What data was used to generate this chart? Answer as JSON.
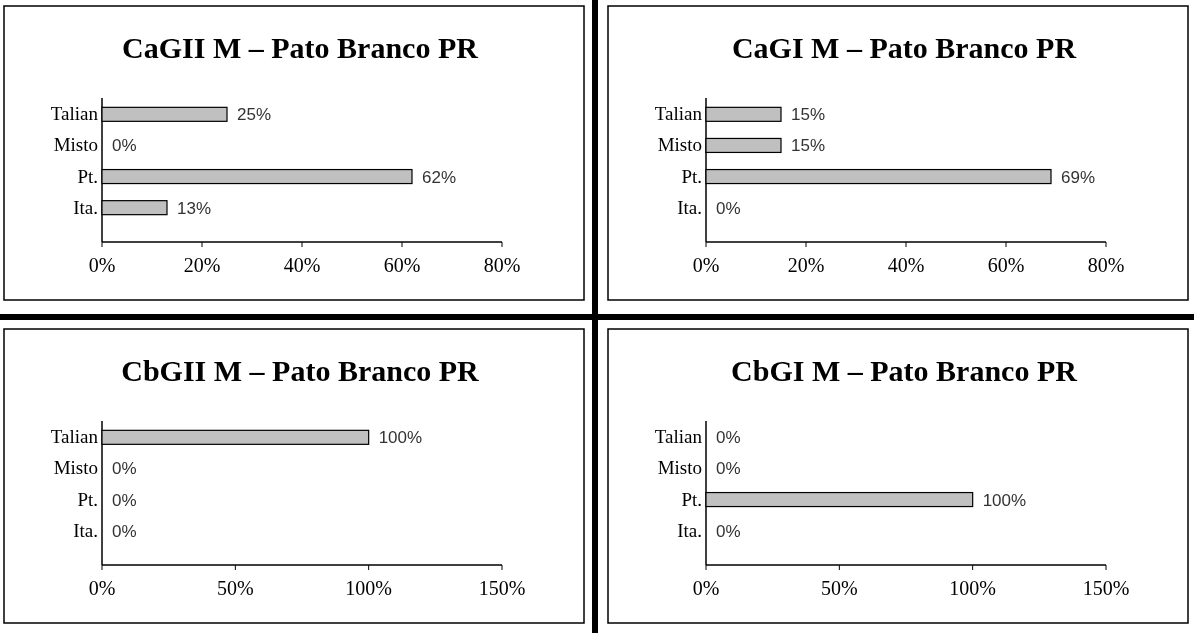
{
  "chart_data": [
    {
      "type": "bar",
      "orientation": "horizontal",
      "title": "CaGII M – Pato Branco PR",
      "categories": [
        "Talian",
        "Misto",
        "Pt.",
        "Ita."
      ],
      "values": [
        25,
        0,
        62,
        13
      ],
      "value_labels": [
        "25%",
        "0%",
        "62%",
        "13%"
      ],
      "color": "#c0c0c0",
      "xlim": [
        0,
        80
      ],
      "xticks": [
        {
          "value": 0,
          "label": "0%"
        },
        {
          "value": 20,
          "label": "20%"
        },
        {
          "value": 40,
          "label": "40%"
        },
        {
          "value": 60,
          "label": "60%"
        },
        {
          "value": 80,
          "label": "80%"
        }
      ]
    },
    {
      "type": "bar",
      "orientation": "horizontal",
      "title": "CaGI M – Pato Branco PR",
      "categories": [
        "Talian",
        "Misto",
        "Pt.",
        "Ita."
      ],
      "values": [
        15,
        15,
        69,
        0
      ],
      "value_labels": [
        "15%",
        "15%",
        "69%",
        "0%"
      ],
      "color": "#c0c0c0",
      "xlim": [
        0,
        80
      ],
      "xticks": [
        {
          "value": 0,
          "label": "0%"
        },
        {
          "value": 20,
          "label": "20%"
        },
        {
          "value": 40,
          "label": "40%"
        },
        {
          "value": 60,
          "label": "60%"
        },
        {
          "value": 80,
          "label": "80%"
        }
      ]
    },
    {
      "type": "bar",
      "orientation": "horizontal",
      "title": "CbGII M – Pato Branco PR",
      "categories": [
        "Talian",
        "Misto",
        "Pt.",
        "Ita."
      ],
      "values": [
        100,
        0,
        0,
        0
      ],
      "value_labels": [
        "100%",
        "0%",
        "0%",
        "0%"
      ],
      "color": "#c0c0c0",
      "xlim": [
        0,
        150
      ],
      "xticks": [
        {
          "value": 0,
          "label": "0%"
        },
        {
          "value": 50,
          "label": "50%"
        },
        {
          "value": 100,
          "label": "100%"
        },
        {
          "value": 150,
          "label": "150%"
        }
      ]
    },
    {
      "type": "bar",
      "orientation": "horizontal",
      "title": "CbGI M – Pato Branco PR",
      "categories": [
        "Talian",
        "Misto",
        "Pt.",
        "Ita."
      ],
      "values": [
        0,
        0,
        100,
        0
      ],
      "value_labels": [
        "0%",
        "0%",
        "100%",
        "0%"
      ],
      "color": "#c0c0c0",
      "xlim": [
        0,
        150
      ],
      "xticks": [
        {
          "value": 0,
          "label": "0%"
        },
        {
          "value": 50,
          "label": "50%"
        },
        {
          "value": 100,
          "label": "100%"
        },
        {
          "value": 150,
          "label": "150%"
        }
      ]
    }
  ]
}
